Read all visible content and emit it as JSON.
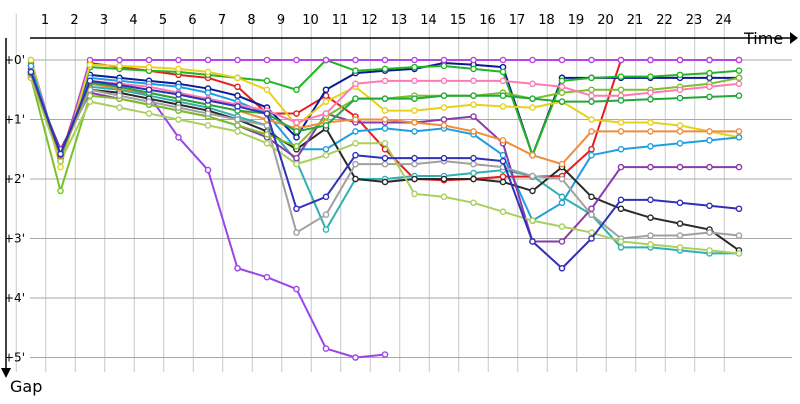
{
  "chart_data": {
    "type": "line",
    "title": "",
    "xlabel": "Time",
    "ylabel": "Gap",
    "x_ticks": [
      "1",
      "2",
      "3",
      "4",
      "5",
      "6",
      "7",
      "8",
      "9",
      "10",
      "11",
      "12",
      "13",
      "14",
      "15",
      "16",
      "17",
      "18",
      "19",
      "20",
      "21",
      "22",
      "23",
      "24"
    ],
    "y_ticks": [
      "+0'",
      "+1'",
      "+2'",
      "+3'",
      "+4'",
      "+5'"
    ],
    "y_unit": "minutes",
    "xlim": [
      1,
      25.5
    ],
    "ylim": [
      0,
      5
    ],
    "y_inverted": true,
    "grid": true,
    "legend": "none",
    "series": [
      {
        "color": "#e32020",
        "values": [
          0.15,
          1.65,
          0.05,
          0.12,
          0.18,
          0.25,
          0.3,
          0.45,
          0.9,
          0.9,
          0.6,
          0.95,
          1.5,
          2.0,
          2.02,
          2.0,
          1.96,
          1.96,
          1.95,
          1.5,
          0.0,
          0.0,
          0.0,
          0.0,
          0.0
        ]
      },
      {
        "color": "#0a1a96",
        "values": [
          0.1,
          1.62,
          0.25,
          0.3,
          0.35,
          0.4,
          0.48,
          0.6,
          0.8,
          1.3,
          0.5,
          0.22,
          0.18,
          0.15,
          0.05,
          0.08,
          0.12,
          1.6,
          0.3,
          0.3,
          0.3,
          0.3,
          0.3,
          0.3,
          0.3
        ]
      },
      {
        "color": "#22b422",
        "values": [
          0.05,
          1.7,
          0.12,
          0.15,
          0.18,
          0.2,
          0.25,
          0.3,
          0.35,
          0.5,
          0.0,
          0.18,
          0.15,
          0.12,
          0.1,
          0.15,
          0.2,
          1.6,
          0.35,
          0.3,
          0.28,
          0.28,
          0.25,
          0.22,
          0.18
        ]
      },
      {
        "color": "#b845e8",
        "values": [
          0.0,
          1.7,
          0.0,
          0.0,
          0.0,
          0.0,
          0.0,
          0.0,
          0.0,
          0.0,
          0.0,
          0.0,
          0.0,
          0.0,
          0.0,
          0.0,
          0.0,
          0.0,
          0.0,
          0.0,
          0.0,
          0.0,
          0.0,
          0.0,
          0.0
        ]
      },
      {
        "color": "#9a45e6",
        "values": [
          0.2,
          1.6,
          0.4,
          0.45,
          0.6,
          1.3,
          1.85,
          3.5,
          3.65,
          3.85,
          4.85,
          5.0,
          4.95,
          null,
          null,
          null,
          null,
          null,
          null,
          null,
          null,
          null,
          null,
          null,
          null
        ]
      },
      {
        "color": "#e6d21a",
        "values": [
          0.0,
          1.8,
          0.08,
          0.1,
          0.12,
          0.15,
          0.2,
          0.3,
          0.5,
          1.1,
          0.7,
          0.45,
          0.85,
          0.85,
          0.8,
          0.75,
          0.78,
          0.8,
          0.7,
          1.0,
          1.05,
          1.05,
          1.1,
          1.2,
          1.3
        ]
      },
      {
        "color": "#1f9fe0",
        "values": [
          0.1,
          1.65,
          0.3,
          0.35,
          0.4,
          0.45,
          0.55,
          0.7,
          0.9,
          1.5,
          1.5,
          1.2,
          1.15,
          1.2,
          1.15,
          1.25,
          1.6,
          2.7,
          2.4,
          1.6,
          1.5,
          1.45,
          1.4,
          1.35,
          1.3
        ]
      },
      {
        "color": "#30b0b0",
        "values": [
          0.2,
          1.55,
          0.45,
          0.5,
          0.6,
          0.7,
          0.8,
          0.95,
          1.1,
          1.7,
          2.85,
          2.0,
          2.0,
          1.95,
          1.95,
          1.9,
          1.85,
          1.95,
          2.3,
          2.6,
          3.15,
          3.15,
          3.2,
          3.25,
          3.25
        ]
      },
      {
        "color": "#2a2a2a",
        "values": [
          0.25,
          1.55,
          0.5,
          0.55,
          0.65,
          0.75,
          0.85,
          1.0,
          1.2,
          1.5,
          1.15,
          2.0,
          2.05,
          2.0,
          2.0,
          2.0,
          2.05,
          2.2,
          1.8,
          2.3,
          2.5,
          2.65,
          2.75,
          2.85,
          3.2
        ]
      },
      {
        "color": "#8a3aaa",
        "values": [
          0.3,
          1.5,
          0.55,
          0.65,
          0.75,
          0.85,
          0.95,
          1.1,
          1.3,
          1.65,
          0.9,
          1.05,
          1.05,
          1.05,
          1.0,
          0.95,
          1.4,
          3.05,
          3.05,
          2.5,
          1.8,
          1.8,
          1.8,
          1.8,
          1.8
        ]
      },
      {
        "color": "#7ac02a",
        "values": [
          0.3,
          2.2,
          0.6,
          0.65,
          0.75,
          0.85,
          0.95,
          1.1,
          1.25,
          1.45,
          0.95,
          0.65,
          0.65,
          0.6,
          0.6,
          0.6,
          0.55,
          0.65,
          0.55,
          0.5,
          0.5,
          0.5,
          0.45,
          0.4,
          0.3
        ]
      },
      {
        "color": "#a0a0a0",
        "values": [
          0.2,
          1.6,
          0.5,
          0.6,
          0.7,
          0.8,
          0.9,
          1.0,
          1.1,
          2.9,
          2.6,
          1.75,
          1.75,
          1.75,
          1.7,
          1.75,
          1.8,
          1.95,
          2.0,
          2.6,
          3.0,
          2.95,
          2.95,
          2.9,
          2.95
        ]
      },
      {
        "color": "#a8d060",
        "values": [
          0.3,
          1.7,
          0.7,
          0.8,
          0.9,
          1.0,
          1.1,
          1.2,
          1.4,
          1.75,
          1.6,
          1.4,
          1.4,
          2.25,
          2.3,
          2.4,
          2.55,
          2.7,
          2.8,
          2.9,
          3.05,
          3.1,
          3.15,
          3.2,
          3.25
        ]
      },
      {
        "color": "#ff7ab4",
        "values": [
          0.25,
          1.6,
          0.35,
          0.4,
          0.45,
          0.55,
          0.65,
          0.75,
          0.85,
          1.05,
          0.9,
          0.4,
          0.35,
          0.35,
          0.35,
          0.35,
          0.35,
          0.4,
          0.45,
          0.6,
          0.6,
          0.55,
          0.5,
          0.45,
          0.4
        ]
      },
      {
        "color": "#f08c3a",
        "values": [
          0.25,
          1.62,
          0.4,
          0.48,
          0.55,
          0.65,
          0.75,
          0.85,
          1.0,
          1.15,
          1.05,
          1.0,
          1.0,
          1.05,
          1.1,
          1.2,
          1.35,
          1.6,
          1.75,
          1.2,
          1.2,
          1.2,
          1.2,
          1.2,
          1.2
        ]
      },
      {
        "color": "#20a838",
        "values": [
          0.22,
          1.6,
          0.38,
          0.45,
          0.55,
          0.65,
          0.75,
          0.85,
          0.9,
          1.2,
          1.1,
          0.65,
          0.65,
          0.65,
          0.6,
          0.6,
          0.6,
          0.65,
          0.7,
          0.7,
          0.68,
          0.66,
          0.64,
          0.62,
          0.6
        ]
      },
      {
        "color": "#3030b8",
        "values": [
          0.2,
          1.58,
          0.35,
          0.42,
          0.5,
          0.58,
          0.68,
          0.78,
          0.9,
          2.5,
          2.3,
          1.6,
          1.65,
          1.65,
          1.65,
          1.65,
          1.7,
          3.05,
          3.5,
          3.0,
          2.35,
          2.35,
          2.4,
          2.45,
          2.5
        ]
      }
    ]
  }
}
